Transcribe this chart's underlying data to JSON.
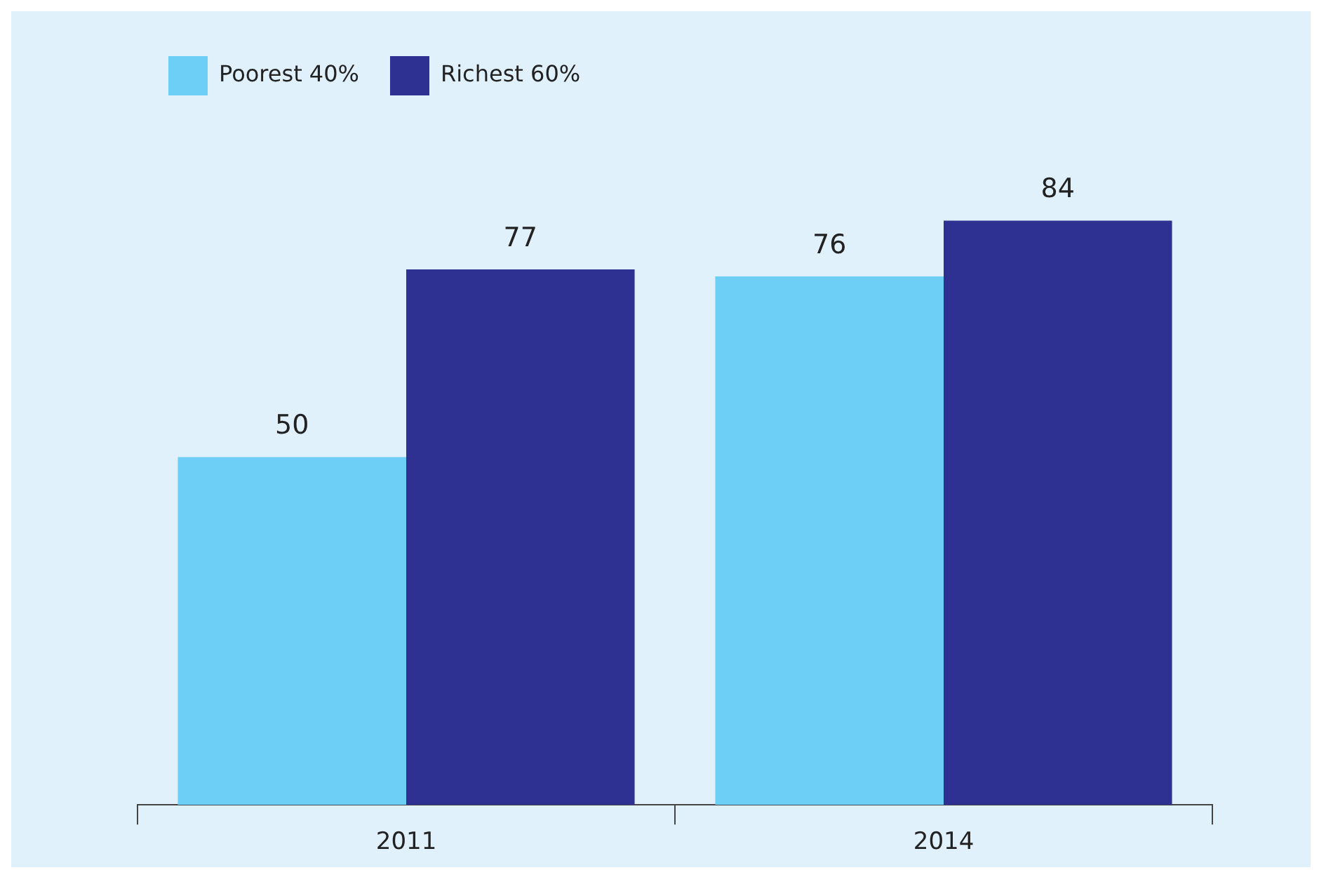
{
  "chart_data": {
    "type": "bar",
    "categories": [
      "2011",
      "2014"
    ],
    "series": [
      {
        "name": "Poorest 40%",
        "color": "#6dcff6",
        "values": [
          50,
          76
        ]
      },
      {
        "name": "Richest 60%",
        "color": "#2e3192",
        "values": [
          77,
          84
        ]
      }
    ],
    "data_labels": true,
    "legend": "top left",
    "grid": false
  }
}
